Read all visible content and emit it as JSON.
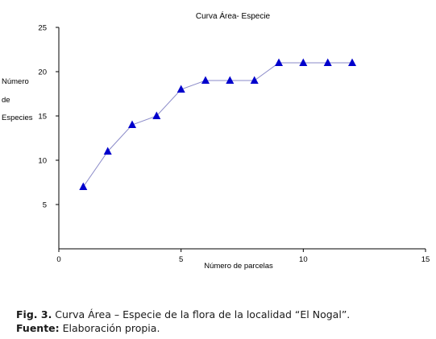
{
  "chart_data": {
    "type": "line",
    "title": "Curva Área- Especie",
    "xlabel": "Número de parcelas",
    "ylabel_lines": [
      "Número",
      "de",
      "Especies"
    ],
    "xlim": [
      0,
      15
    ],
    "ylim": [
      0,
      25
    ],
    "x_ticks": [
      0,
      5,
      10,
      15
    ],
    "y_ticks": [
      5,
      10,
      15,
      20,
      25
    ],
    "grid": false,
    "legend": "none",
    "series": [
      {
        "x": [
          1,
          2,
          3,
          4,
          5,
          6,
          7,
          8,
          9,
          10,
          11,
          12
        ],
        "values": [
          7,
          11,
          14,
          15,
          18,
          19,
          19,
          19,
          21,
          21,
          21,
          21
        ],
        "line_color": "#8a8ac8",
        "marker": "triangle",
        "marker_color": "#0000cc"
      }
    ]
  },
  "caption": {
    "fig_label": "Fig. 3.",
    "fig_text": " Curva Área – Especie de la flora de la localidad “El Nogal”.",
    "source_label": "Fuente:",
    "source_text": " Elaboración propia."
  }
}
